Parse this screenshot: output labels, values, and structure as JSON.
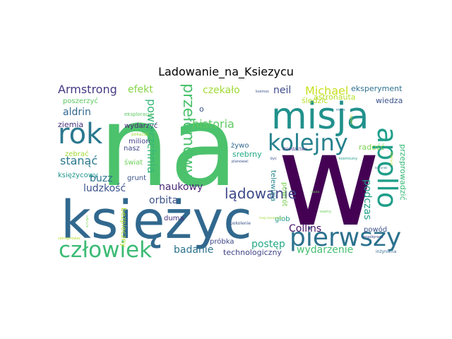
{
  "title": "Ladowanie_na_Ksiezycu",
  "words": [
    {
      "text": "na",
      "color": "#4cc26c"
    },
    {
      "text": "w",
      "color": "#440154"
    },
    {
      "text": "księżyc",
      "color": "#31688e"
    },
    {
      "text": "misja",
      "color": "#21918c"
    },
    {
      "text": "rok",
      "color": "#2a788e"
    },
    {
      "text": "pierwszy",
      "color": "#2c728e"
    },
    {
      "text": "kolejny",
      "color": "#26828e"
    },
    {
      "text": "apollo",
      "color": "#1f9e89"
    },
    {
      "text": "człowiek",
      "color": "#3bbb75"
    },
    {
      "text": "przełomowy",
      "color": "#4ac16d"
    },
    {
      "text": "lądowanie",
      "color": "#3e4989"
    },
    {
      "text": "historia",
      "color": "#5ec962"
    },
    {
      "text": "Armstrong",
      "color": "#443983"
    },
    {
      "text": "efekt",
      "color": "#86d549"
    },
    {
      "text": "czekało",
      "color": "#a0da39"
    },
    {
      "text": "neil",
      "color": "#3e4a89"
    },
    {
      "text": "Michael",
      "color": "#c8e020"
    },
    {
      "text": "eksperyment",
      "color": "#2d708e"
    },
    {
      "text": "aldrin",
      "color": "#31688e"
    },
    {
      "text": "poszerzyć",
      "color": "#5ec962"
    },
    {
      "text": "ziemia",
      "color": "#46327e"
    },
    {
      "text": "wydarzyć",
      "color": "#482475"
    },
    {
      "text": "milion",
      "color": "#433e85"
    },
    {
      "text": "nasz",
      "color": "#404688"
    },
    {
      "text": "buzz",
      "color": "#2c728e"
    },
    {
      "text": "stanąć",
      "color": "#2a788e"
    },
    {
      "text": "ludzkość",
      "color": "#3b528b"
    },
    {
      "text": "naukowy",
      "color": "#482878"
    },
    {
      "text": "orbita",
      "color": "#3b528b"
    },
    {
      "text": "powierzchnia",
      "color": "#35b779"
    },
    {
      "text": "badanie",
      "color": "#2c728e"
    },
    {
      "text": "podczas",
      "color": "#1fa088"
    },
    {
      "text": "Collins",
      "color": "#471063"
    },
    {
      "text": "postęp",
      "color": "#22a884"
    },
    {
      "text": "wydarzenie",
      "color": "#44bf70"
    },
    {
      "text": "technologiczny",
      "color": "#414487"
    },
    {
      "text": "próbka",
      "color": "#3f4788"
    },
    {
      "text": "powód",
      "color": "#3b528b"
    },
    {
      "text": "glob",
      "color": "#1f9a8a"
    },
    {
      "text": "przeprowadzić",
      "color": "#38b977"
    },
    {
      "text": "radość",
      "color": "#7ad151"
    },
    {
      "text": "wiedza",
      "color": "#3b528b"
    },
    {
      "text": "śledzić",
      "color": "#b5de2b"
    },
    {
      "text": "astronauta",
      "color": "#b8de29"
    },
    {
      "text": "srebrny",
      "color": "#23a983"
    },
    {
      "text": "żywo",
      "color": "#31688e"
    },
    {
      "text": "telewizja",
      "color": "#25848e"
    },
    {
      "text": "powrót",
      "color": "#7ad151"
    },
    {
      "text": "zebrać",
      "color": "#a2da37"
    },
    {
      "text": "świat",
      "color": "#6ece58"
    },
    {
      "text": "księżycowy",
      "color": "#1f948c"
    },
    {
      "text": "grunt",
      "color": "#3b528b"
    },
    {
      "text": "duma",
      "color": "#46307e"
    },
    {
      "text": "bezpieczny",
      "color": "#b5de2b"
    },
    {
      "text": "eksploracja",
      "color": "#5ec962"
    },
    {
      "text": "pokazać",
      "color": "#a0da39"
    },
    {
      "text": "kosmos",
      "color": "#3b528b"
    },
    {
      "text": "mars",
      "color": "#2c728e"
    },
    {
      "text": "dziedzictwo",
      "color": "#453781"
    },
    {
      "text": "planować",
      "color": "#3b528b"
    },
    {
      "text": "pokolenie",
      "color": "#3b528b"
    },
    {
      "text": "współpraca",
      "color": "#3e4989"
    },
    {
      "text": "inżynieria",
      "color": "#31688e"
    },
    {
      "text": "ważny",
      "color": "#6ece58"
    },
    {
      "text": "zainspirować",
      "color": "#b5de2b"
    },
    {
      "text": "o",
      "color": "#3b528b"
    },
    {
      "text": "rakieta",
      "color": "#b5de2b"
    },
    {
      "text": "inspiracja",
      "color": "#b5de2b"
    },
    {
      "text": "kosmiczny",
      "color": "#1f9e89"
    },
    {
      "text": "odkrycie",
      "color": "#7ad151"
    },
    {
      "text": "być",
      "color": "#3b528b"
    },
    {
      "text": "kierunek",
      "color": "#2a788e"
    },
    {
      "text": "misja kosmiczna",
      "color": "#a0da39"
    },
    {
      "text": "nauka",
      "color": "#6ece58"
    }
  ]
}
